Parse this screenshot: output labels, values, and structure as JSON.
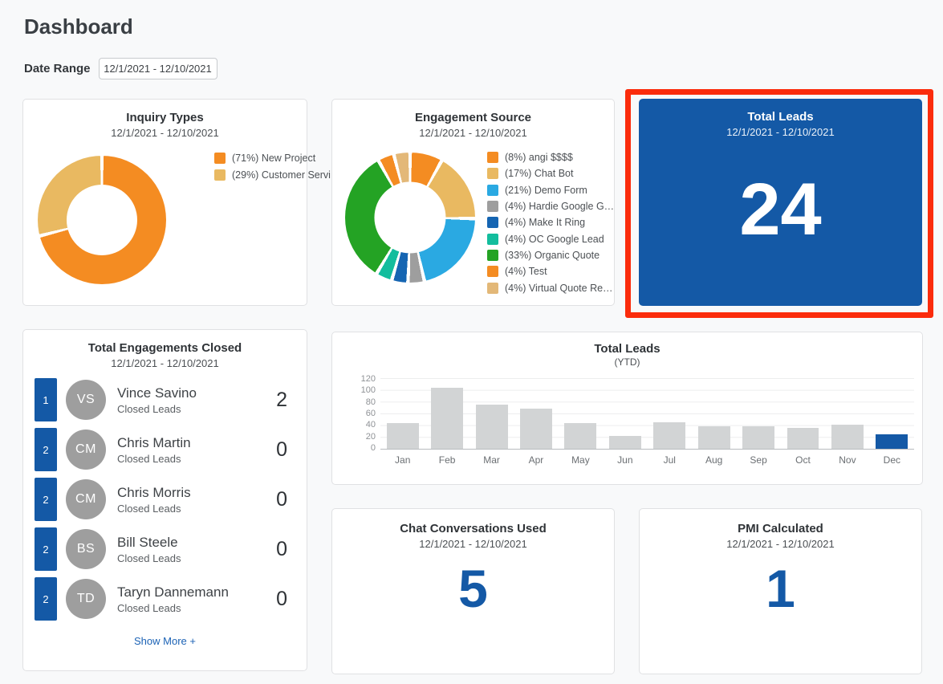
{
  "page": {
    "title": "Dashboard"
  },
  "date_range": {
    "label": "Date Range",
    "value": "12/1/2021 - 12/10/2021"
  },
  "colors": {
    "brand_blue": "#1459A6",
    "highlight_red": "#FB2C0C",
    "bar_gray": "#D2D4D5",
    "orange": "#F48C22",
    "tan": "#E9B961",
    "light_blue": "#2AA9E2",
    "gray": "#9E9E9E",
    "dark_blue": "#1565B2",
    "teal": "#13BD9D",
    "green": "#24A324"
  },
  "cards": {
    "inquiry": {
      "title": "Inquiry Types",
      "subtitle": "12/1/2021 - 12/10/2021"
    },
    "engagement": {
      "title": "Engagement Source",
      "subtitle": "12/1/2021 - 12/10/2021"
    },
    "total_leads": {
      "title": "Total Leads",
      "subtitle": "12/1/2021 - 12/10/2021",
      "value": "24",
      "highlighted": true
    },
    "closed": {
      "title": "Total Engagements Closed",
      "subtitle": "12/1/2021 - 12/10/2021",
      "rows": [
        {
          "rank": "1",
          "initials": "VS",
          "name": "Vince Savino",
          "sublabel": "Closed Leads",
          "value": "2"
        },
        {
          "rank": "2",
          "initials": "CM",
          "name": "Chris Martin",
          "sublabel": "Closed Leads",
          "value": "0"
        },
        {
          "rank": "2",
          "initials": "CM",
          "name": "Chris Morris",
          "sublabel": "Closed Leads",
          "value": "0"
        },
        {
          "rank": "2",
          "initials": "BS",
          "name": "Bill Steele",
          "sublabel": "Closed Leads",
          "value": "0"
        },
        {
          "rank": "2",
          "initials": "TD",
          "name": "Taryn Dannemann",
          "sublabel": "Closed Leads",
          "value": "0"
        }
      ],
      "show_more": "Show More +"
    },
    "ytd": {
      "title": "Total Leads",
      "subtitle": "(YTD)"
    },
    "chat": {
      "title": "Chat Conversations Used",
      "subtitle": "12/1/2021 - 12/10/2021",
      "value": "5"
    },
    "pmi": {
      "title": "PMI Calculated",
      "subtitle": "12/1/2021 - 12/10/2021",
      "value": "1"
    }
  },
  "chart_data": [
    {
      "type": "pie",
      "donut": true,
      "title": "Inquiry Types",
      "subtitle": "12/1/2021 - 12/10/2021",
      "legend_position": "right",
      "slices": [
        {
          "label": "(71%) New Project",
          "value": 71,
          "color": "#F48C22"
        },
        {
          "label": "(29%) Customer Servi…",
          "value": 29,
          "color": "#E9B961"
        }
      ]
    },
    {
      "type": "pie",
      "donut": true,
      "title": "Engagement Source",
      "subtitle": "12/1/2021 - 12/10/2021",
      "legend_position": "right",
      "slices": [
        {
          "label": "(8%) angi $$$$",
          "value": 8,
          "color": "#F48C22"
        },
        {
          "label": "(17%) Chat Bot",
          "value": 17,
          "color": "#E9B961"
        },
        {
          "label": "(21%) Demo Form",
          "value": 21,
          "color": "#2AA9E2"
        },
        {
          "label": "(4%) Hardie Google G…",
          "value": 4,
          "color": "#9E9E9E"
        },
        {
          "label": "(4%) Make It Ring",
          "value": 4,
          "color": "#1565B2"
        },
        {
          "label": "(4%) OC Google Lead",
          "value": 4,
          "color": "#13BD9D"
        },
        {
          "label": "(33%) Organic Quote",
          "value": 33,
          "color": "#24A324"
        },
        {
          "label": "(4%) Test",
          "value": 4,
          "color": "#F48C22"
        },
        {
          "label": "(4%) Virtual Quote Re…",
          "value": 4,
          "color": "#E3B878"
        }
      ]
    },
    {
      "type": "bar",
      "title": "Total Leads",
      "subtitle": "(YTD)",
      "categories": [
        "Jan",
        "Feb",
        "Mar",
        "Apr",
        "May",
        "Jun",
        "Jul",
        "Aug",
        "Sep",
        "Oct",
        "Nov",
        "Dec"
      ],
      "values": [
        43,
        104,
        75,
        68,
        44,
        22,
        45,
        38,
        38,
        35,
        41,
        24
      ],
      "ylim": [
        0,
        120
      ],
      "yticks": [
        0,
        20,
        40,
        60,
        80,
        100,
        120
      ],
      "grid": true,
      "bar_color": "#D2D4D5",
      "highlight_index": 11,
      "highlight_color": "#1459A6",
      "xlabel": "",
      "ylabel": ""
    }
  ]
}
